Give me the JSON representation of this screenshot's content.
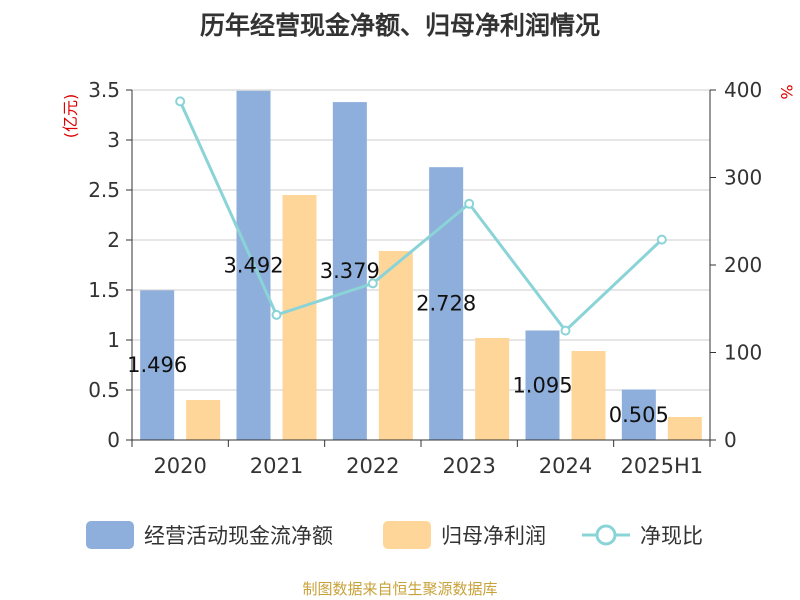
{
  "colors": {
    "bar1": "#8eaedb",
    "bar2": "#ffd699",
    "line": "#8ad4d8",
    "axis": "#333333",
    "grid": "#cccccc",
    "unit": "#dd0000"
  },
  "chart_data": {
    "type": "bar",
    "title": "历年经营现金净额、归母净利润情况",
    "categories": [
      "2020",
      "2021",
      "2022",
      "2023",
      "2024",
      "2025H1"
    ],
    "y_left": {
      "unit": "(亿元)",
      "range": [
        0,
        3.5
      ],
      "ticks": [
        "0",
        "0.5",
        "1",
        "1.5",
        "2",
        "2.5",
        "3",
        "3.5"
      ]
    },
    "y_right": {
      "unit": "%",
      "range": [
        0,
        400
      ],
      "ticks": [
        "0",
        "100",
        "200",
        "300",
        "400"
      ]
    },
    "series": [
      {
        "name": "经营活动现金流净额",
        "type": "bar",
        "axis": "left",
        "values": [
          1.496,
          3.492,
          3.379,
          2.728,
          1.095,
          0.505
        ],
        "labels": [
          "1.496",
          "3.492",
          "3.379",
          "2.728",
          "1.095",
          "0.505"
        ]
      },
      {
        "name": "归母净利润",
        "type": "bar",
        "axis": "left",
        "values": [
          0.4,
          2.45,
          1.89,
          1.02,
          0.89,
          0.23
        ]
      },
      {
        "name": "净现比",
        "type": "line",
        "axis": "right",
        "values": [
          387,
          143,
          179,
          270,
          125,
          229
        ]
      }
    ],
    "grid": true,
    "legend": "bottom"
  },
  "footer": "制图数据来自恒生聚源数据库"
}
